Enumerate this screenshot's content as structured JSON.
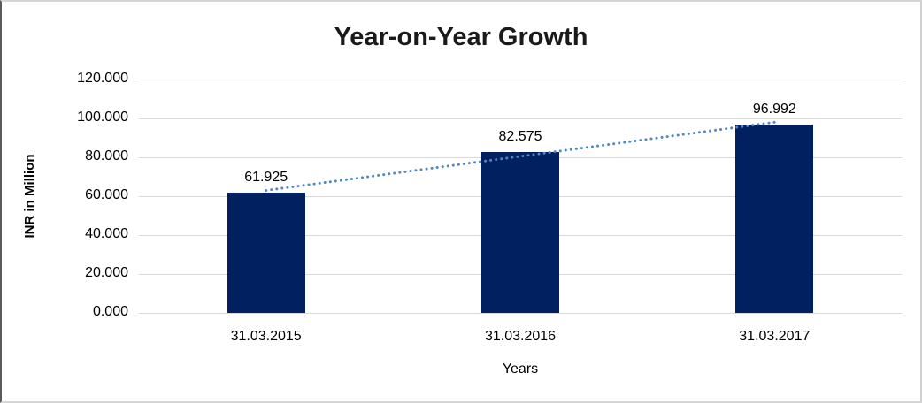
{
  "chart_data": {
    "type": "bar",
    "title": "Year-on-Year Growth",
    "xlabel": "Years",
    "ylabel": "INR in Million",
    "categories": [
      "31.03.2015",
      "31.03.2016",
      "31.03.2017"
    ],
    "values": [
      61.925,
      82.575,
      96.992
    ],
    "value_labels": [
      "61.925",
      "82.575",
      "96.992"
    ],
    "ylim": [
      0,
      120
    ],
    "y_tick_values": [
      0,
      20,
      40,
      60,
      80,
      100,
      120
    ],
    "y_tick_labels": [
      "0.000",
      "20.000",
      "40.000",
      "60.000",
      "80.000",
      "100.000",
      "120.000"
    ],
    "grid": "horizontal",
    "legend": "none",
    "trendline": "linear-dotted",
    "colors": {
      "bar": "#002060",
      "trendline": "#4e86c6",
      "gridline": "#d9d9d9",
      "title_text": "#1a1a1a",
      "axis_text": "#000000"
    }
  }
}
